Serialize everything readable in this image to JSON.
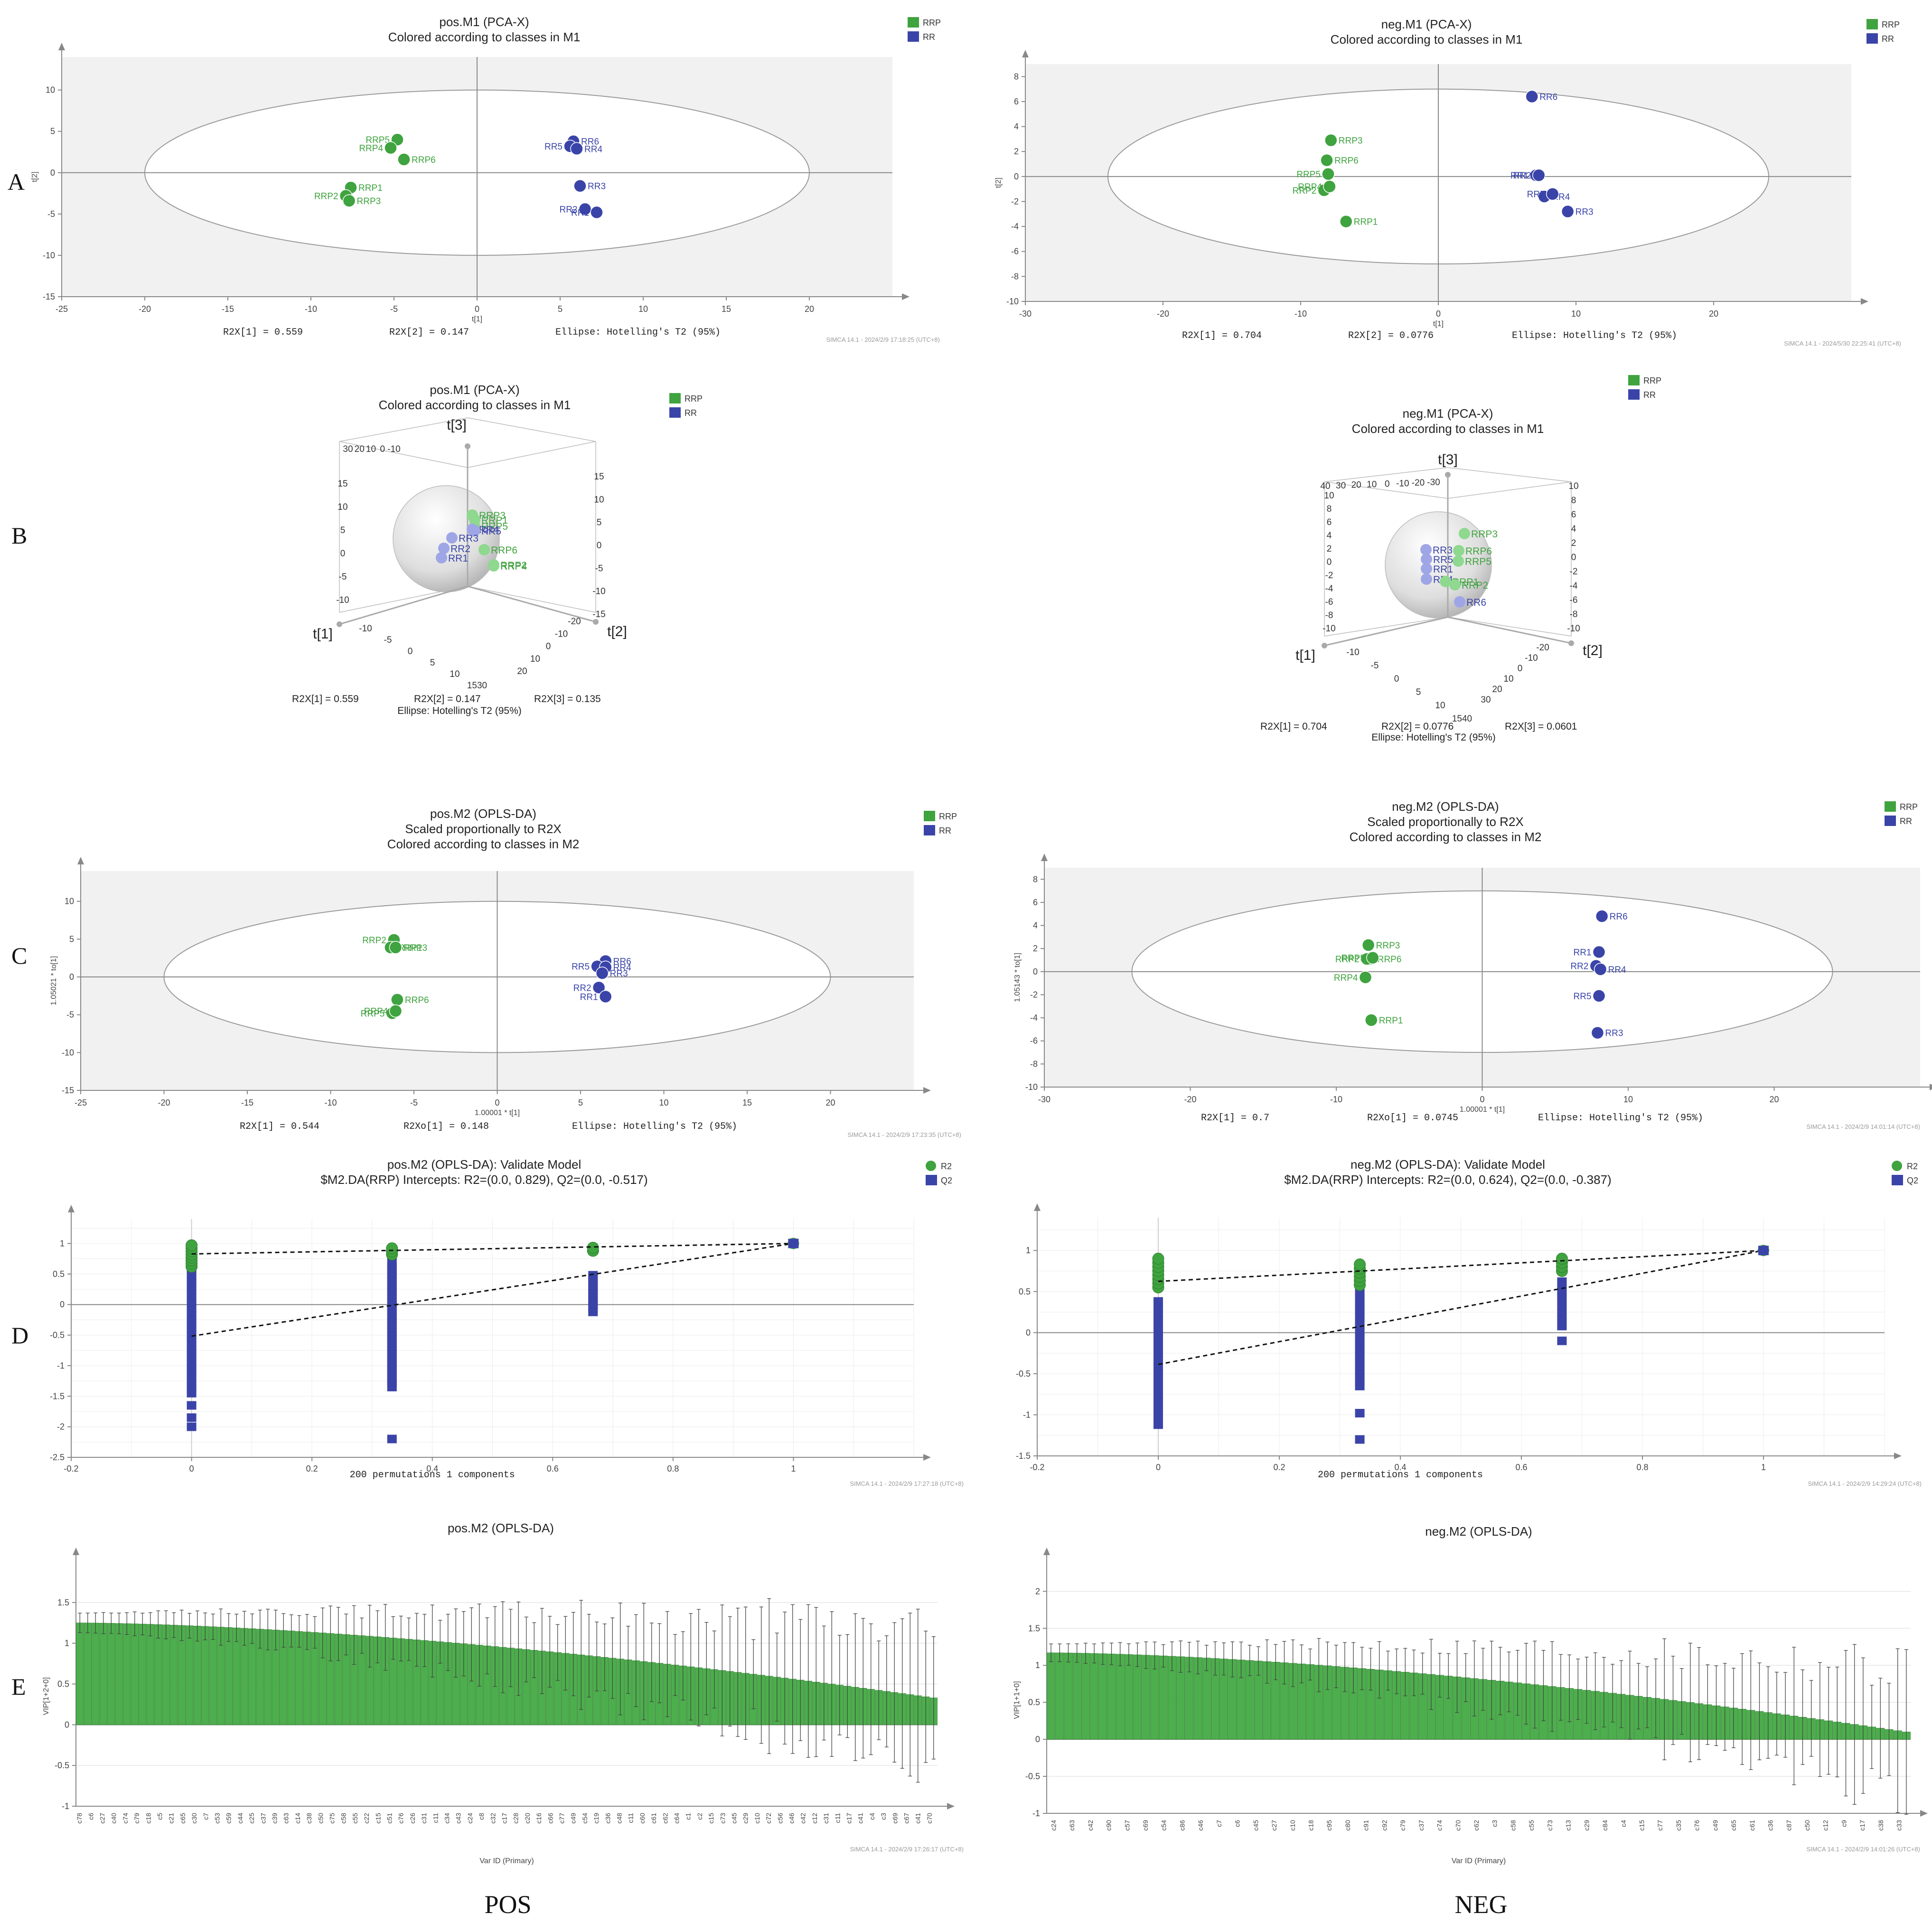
{
  "colors": {
    "rrp": "#3fa33f",
    "rr": "#3a44a8",
    "rrp_light": "#8fd88f",
    "rr_light": "#9fa6e6",
    "dashed": "#111111"
  },
  "panel_letters": [
    "A",
    "B",
    "C",
    "D",
    "E"
  ],
  "column_labels": {
    "pos": "POS",
    "neg": "NEG"
  },
  "chart_data": [
    {
      "id": "A-pos",
      "type": "scatter",
      "title": "pos.M1 (PCA-X)",
      "subtitle": "Colored according to classes in M1",
      "xlabel": "t[1]",
      "ylabel": "t[2]",
      "xlim": [
        -25,
        25
      ],
      "ylim": [
        -15,
        14
      ],
      "xticks": [
        -25,
        -20,
        -15,
        -10,
        -5,
        0,
        5,
        10,
        15,
        20
      ],
      "yticks": [
        -15,
        -10,
        -5,
        0,
        5,
        10
      ],
      "legend": [
        "RRP",
        "RR"
      ],
      "ellipse": {
        "rx": 20,
        "ry": 10
      },
      "points": [
        {
          "label": "RRP5",
          "x": -4.8,
          "y": 4.0,
          "cls": "RRP"
        },
        {
          "label": "RRP4",
          "x": -5.2,
          "y": 3.0,
          "cls": "RRP"
        },
        {
          "label": "RRP6",
          "x": -4.4,
          "y": 1.6,
          "cls": "RRP"
        },
        {
          "label": "RRP1",
          "x": -7.6,
          "y": -1.8,
          "cls": "RRP"
        },
        {
          "label": "RRP2",
          "x": -7.9,
          "y": -2.8,
          "cls": "RRP"
        },
        {
          "label": "RRP3",
          "x": -7.7,
          "y": -3.4,
          "cls": "RRP"
        },
        {
          "label": "RR6",
          "x": 5.8,
          "y": 3.8,
          "cls": "RR"
        },
        {
          "label": "RR5",
          "x": 5.6,
          "y": 3.2,
          "cls": "RR"
        },
        {
          "label": "RR4",
          "x": 6.0,
          "y": 2.9,
          "cls": "RR"
        },
        {
          "label": "RR3",
          "x": 6.2,
          "y": -1.6,
          "cls": "RR"
        },
        {
          "label": "RR2",
          "x": 6.5,
          "y": -4.4,
          "cls": "RR"
        },
        {
          "label": "RR1",
          "x": 7.2,
          "y": -4.8,
          "cls": "RR"
        }
      ],
      "footer": [
        "R2X[1] = 0.559",
        "R2X[2] = 0.147",
        "Ellipse: Hotelling's T2 (95%)"
      ],
      "stamp": "SIMCA 14.1 - 2024/2/9 17:18:25 (UTC+8)"
    },
    {
      "id": "A-neg",
      "type": "scatter",
      "title": "neg.M1 (PCA-X)",
      "subtitle": "Colored according to classes in M1",
      "xlabel": "t[1]",
      "ylabel": "t[2]",
      "xlim": [
        -30,
        30
      ],
      "ylim": [
        -10,
        9
      ],
      "xticks": [
        -30,
        -20,
        -10,
        0,
        10,
        20
      ],
      "yticks": [
        -10,
        -8,
        -6,
        -4,
        -2,
        0,
        2,
        4,
        6,
        8
      ],
      "legend": [
        "RRP",
        "RR"
      ],
      "ellipse": {
        "rx": 24,
        "ry": 7
      },
      "points": [
        {
          "label": "RR6",
          "x": 6.8,
          "y": 6.4,
          "cls": "RR"
        },
        {
          "label": "RRP3",
          "x": -7.8,
          "y": 2.9,
          "cls": "RRP"
        },
        {
          "label": "RRP6",
          "x": -8.1,
          "y": 1.3,
          "cls": "RRP"
        },
        {
          "label": "RRP5",
          "x": -8.0,
          "y": 0.2,
          "cls": "RRP"
        },
        {
          "label": "RRP2",
          "x": -8.3,
          "y": -1.1,
          "cls": "RRP"
        },
        {
          "label": "RRP4",
          "x": -7.9,
          "y": -0.8,
          "cls": "RRP"
        },
        {
          "label": "RRP1",
          "x": -6.7,
          "y": -3.6,
          "cls": "RRP"
        },
        {
          "label": "RR1",
          "x": 7.1,
          "y": 0.1,
          "cls": "RR"
        },
        {
          "label": "RR2",
          "x": 7.3,
          "y": 0.1,
          "cls": "RR"
        },
        {
          "label": "RR4",
          "x": 7.7,
          "y": -1.6,
          "cls": "RR"
        },
        {
          "label": "RR5",
          "x": 8.3,
          "y": -1.4,
          "cls": "RR"
        },
        {
          "label": "RR3",
          "x": 9.4,
          "y": -2.8,
          "cls": "RR"
        }
      ],
      "footer": [
        "R2X[1] = 0.704",
        "R2X[2] = 0.0776",
        "Ellipse: Hotelling's T2 (95%)"
      ],
      "stamp": "SIMCA 14.1 - 2024/5/30 22:25:41 (UTC+8)"
    },
    {
      "id": "B-pos",
      "type": "scatter",
      "title": "pos.M1 (PCA-X)",
      "subtitle": "Colored according to classes in M1",
      "axis_names": [
        "t[1]",
        "t[2]",
        "t[3]"
      ],
      "legend": [
        "RRP",
        "RR"
      ],
      "tick_groups": {
        "top_left": [
          "30",
          "20",
          "10",
          "0",
          "-10"
        ],
        "left_v": [
          "15",
          "10",
          "5",
          "0",
          "-5",
          "-10"
        ],
        "right_v": [
          "15",
          "10",
          "5",
          "0",
          "-5",
          "-10",
          "-15"
        ],
        "front_left": [
          "-10",
          "-5",
          "0",
          "5",
          "10",
          "1530"
        ],
        "front_right": [
          "-20",
          "-10",
          "0",
          "10",
          "20"
        ]
      },
      "point_labels": [
        "RRP3",
        "RRP1",
        "RRP5",
        "RR4",
        "RR5",
        "RR3",
        "RR2",
        "RR1",
        "RRP6",
        "RRP2",
        "RRP4"
      ],
      "footer": [
        "R2X[1] = 0.559",
        "R2X[2] = 0.147",
        "R2X[3] = 0.135",
        "Ellipse: Hotelling's T2 (95%)"
      ]
    },
    {
      "id": "B-neg",
      "type": "scatter",
      "title": "neg.M1 (PCA-X)",
      "subtitle": "Colored according to classes in M1",
      "axis_names": [
        "t[1]",
        "t[2]",
        "t[3]"
      ],
      "legend": [
        "RRP",
        "RR"
      ],
      "tick_groups": {
        "top_left": [
          "40",
          "30",
          "20",
          "10",
          "0",
          "-10",
          "-20",
          "-30"
        ],
        "left_v": [
          "10",
          "8",
          "6",
          "4",
          "2",
          "0",
          "-2",
          "-4",
          "-6",
          "-8",
          "-10"
        ],
        "right_v": [
          "10",
          "8",
          "6",
          "4",
          "2",
          "0",
          "-2",
          "-4",
          "-6",
          "-8",
          "-10"
        ],
        "front_left": [
          "-10",
          "-5",
          "0",
          "5",
          "10",
          "1540"
        ],
        "front_right": [
          "-20",
          "-10",
          "0",
          "10",
          "20",
          "30"
        ]
      },
      "point_labels": [
        "RRP3",
        "RR3",
        "RRP6",
        "RR5",
        "RRP5",
        "RR1",
        "RR4",
        "RRP1",
        "RRP2",
        "RR6"
      ],
      "footer": [
        "R2X[1] = 0.704",
        "R2X[2] = 0.0776",
        "R2X[3] = 0.0601",
        "Ellipse: Hotelling's T2 (95%)"
      ]
    },
    {
      "id": "C-pos",
      "type": "scatter",
      "title": "pos.M2 (OPLS-DA)",
      "subtitle": "Scaled proportionally to R2X",
      "subtitle2": "Colored according to classes in M2",
      "xlabel": "1.00001 * t[1]",
      "ylabel": "1.05021 * to[1]",
      "xlim": [
        -25,
        25
      ],
      "ylim": [
        -15,
        14
      ],
      "xticks": [
        -25,
        -20,
        -15,
        -10,
        -5,
        0,
        5,
        10,
        15,
        20
      ],
      "yticks": [
        -15,
        -10,
        -5,
        0,
        5,
        10
      ],
      "legend": [
        "RRP",
        "RR"
      ],
      "ellipse": {
        "rx": 20,
        "ry": 10
      },
      "points": [
        {
          "label": "RRP2",
          "x": -6.2,
          "y": 4.9,
          "cls": "RRP"
        },
        {
          "label": "RRP1",
          "x": -6.4,
          "y": 3.9,
          "cls": "RRP"
        },
        {
          "label": "RRP3",
          "x": -6.1,
          "y": 3.9,
          "cls": "RRP"
        },
        {
          "label": "RRP6",
          "x": -6.0,
          "y": -3.0,
          "cls": "RRP"
        },
        {
          "label": "RRP5",
          "x": -6.3,
          "y": -4.8,
          "cls": "RRP"
        },
        {
          "label": "RRP4",
          "x": -6.1,
          "y": -4.5,
          "cls": "RRP"
        },
        {
          "label": "RR6",
          "x": 6.5,
          "y": 2.1,
          "cls": "RR"
        },
        {
          "label": "RR5",
          "x": 6.0,
          "y": 1.4,
          "cls": "RR"
        },
        {
          "label": "RR4",
          "x": 6.5,
          "y": 1.3,
          "cls": "RR"
        },
        {
          "label": "RR3",
          "x": 6.3,
          "y": 0.5,
          "cls": "RR"
        },
        {
          "label": "RR2",
          "x": 6.1,
          "y": -1.4,
          "cls": "RR"
        },
        {
          "label": "RR1",
          "x": 6.5,
          "y": -2.6,
          "cls": "RR"
        }
      ],
      "footer": [
        "R2X[1] = 0.544",
        "R2Xo[1] = 0.148",
        "Ellipse: Hotelling's T2 (95%)"
      ],
      "stamp": "SIMCA 14.1 - 2024/2/9 17:23:35 (UTC+8)"
    },
    {
      "id": "C-neg",
      "type": "scatter",
      "title": "neg.M2 (OPLS-DA)",
      "subtitle": "Scaled proportionally to R2X",
      "subtitle2": "Colored according to classes in M2",
      "xlabel": "1.00001 * t[1]",
      "ylabel": "1.05143 * to[1]",
      "xlim": [
        -30,
        30
      ],
      "ylim": [
        -10,
        9
      ],
      "xticks": [
        -30,
        -20,
        -10,
        0,
        10,
        20
      ],
      "yticks": [
        -10,
        -8,
        -6,
        -4,
        -2,
        0,
        2,
        4,
        6,
        8
      ],
      "legend": [
        "RRP",
        "RR"
      ],
      "ellipse": {
        "rx": 24,
        "ry": 7
      },
      "points": [
        {
          "label": "RR6",
          "x": 8.2,
          "y": 4.8,
          "cls": "RR"
        },
        {
          "label": "RRP3",
          "x": -7.8,
          "y": 2.3,
          "cls": "RRP"
        },
        {
          "label": "RRP6",
          "x": -7.7,
          "y": 1.1,
          "cls": "RRP"
        },
        {
          "label": "RRP2",
          "x": -7.9,
          "y": 1.1,
          "cls": "RRP"
        },
        {
          "label": "RRP5",
          "x": -7.5,
          "y": 1.2,
          "cls": "RRP"
        },
        {
          "label": "RRP4",
          "x": -8.0,
          "y": -0.5,
          "cls": "RRP"
        },
        {
          "label": "RRP1",
          "x": -7.6,
          "y": -4.2,
          "cls": "RRP"
        },
        {
          "label": "RR1",
          "x": 8.0,
          "y": 1.7,
          "cls": "RR"
        },
        {
          "label": "RR2",
          "x": 7.8,
          "y": 0.5,
          "cls": "RR"
        },
        {
          "label": "RR4",
          "x": 8.1,
          "y": 0.2,
          "cls": "RR"
        },
        {
          "label": "RR5",
          "x": 8.0,
          "y": -2.1,
          "cls": "RR"
        },
        {
          "label": "RR3",
          "x": 7.9,
          "y": -5.3,
          "cls": "RR"
        }
      ],
      "footer": [
        "R2X[1] = 0.7",
        "R2Xo[1] = 0.0745",
        "Ellipse: Hotelling's T2 (95%)"
      ],
      "stamp": "SIMCA 14.1 - 2024/2/9 14:01:14 (UTC+8)"
    },
    {
      "id": "D-pos",
      "type": "scatter",
      "title": "pos.M2 (OPLS-DA): Validate Model",
      "subtitle": "$M2.DA(RRP) Intercepts: R2=(0.0, 0.829), Q2=(0.0, -0.517)",
      "xlabel": "200 permutations 1 components",
      "xlim": [
        -0.2,
        1.2
      ],
      "ylim": [
        -2.5,
        1.4
      ],
      "xticks": [
        -0.2,
        0,
        0.2,
        0.4,
        0.6,
        0.8,
        1
      ],
      "yticks": [
        -2.5,
        -2,
        -1.5,
        -1,
        -0.5,
        0,
        0.5,
        1
      ],
      "legend": [
        "R2",
        "Q2"
      ],
      "r2_line": [
        [
          0,
          0.829
        ],
        [
          1,
          1
        ]
      ],
      "q2_line": [
        [
          0,
          -0.517
        ],
        [
          1,
          1
        ]
      ],
      "r2_columns": [
        {
          "x": 0,
          "min": 0.62,
          "max": 0.98
        },
        {
          "x": 0.333,
          "min": 0.82,
          "max": 0.96
        },
        {
          "x": 0.667,
          "min": 0.88,
          "max": 0.94
        }
      ],
      "q2_columns": [
        {
          "x": 0,
          "min": -1.45,
          "max": 0.82,
          "outliers": [
            -1.65,
            -1.85,
            -2.0
          ]
        },
        {
          "x": 0.333,
          "min": -1.35,
          "max": 0.72,
          "outliers": [
            -2.2
          ]
        },
        {
          "x": 0.667,
          "min": -0.12,
          "max": 0.48,
          "outliers": []
        }
      ],
      "final_point": {
        "x": 1,
        "r2": 1,
        "q2": 1
      },
      "stamp": "SIMCA 14.1 - 2024/2/9 17:27:18 (UTC+8)"
    },
    {
      "id": "D-neg",
      "type": "scatter",
      "title": "neg.M2 (OPLS-DA): Validate Model",
      "subtitle": "$M2.DA(RRP) Intercepts: R2=(0.0, 0.624), Q2=(0.0, -0.387)",
      "xlabel": "200 permutations 1 components",
      "xlim": [
        -0.2,
        1.2
      ],
      "ylim": [
        -1.5,
        1.4
      ],
      "xticks": [
        -0.2,
        0,
        0.2,
        0.4,
        0.6,
        0.8,
        1
      ],
      "yticks": [
        -1.5,
        -1,
        -0.5,
        0,
        0.5,
        1
      ],
      "legend": [
        "R2",
        "Q2"
      ],
      "r2_line": [
        [
          0,
          0.624
        ],
        [
          1,
          1
        ]
      ],
      "q2_line": [
        [
          0,
          -0.387
        ],
        [
          1,
          1
        ]
      ],
      "r2_columns": [
        {
          "x": 0,
          "min": 0.55,
          "max": 0.9
        },
        {
          "x": 0.333,
          "min": 0.58,
          "max": 0.86
        },
        {
          "x": 0.667,
          "min": 0.75,
          "max": 0.92
        }
      ],
      "q2_columns": [
        {
          "x": 0,
          "min": -1.12,
          "max": 0.38,
          "outliers": []
        },
        {
          "x": 0.333,
          "min": -0.65,
          "max": 0.5,
          "outliers": [
            -0.98,
            -1.3
          ]
        },
        {
          "x": 0.667,
          "min": 0.08,
          "max": 0.62,
          "outliers": [
            -0.1
          ]
        }
      ],
      "final_point": {
        "x": 1,
        "r2": 1,
        "q2": 1
      },
      "stamp": "SIMCA 14.1 - 2024/2/9 14:29:24 (UTC+8)"
    },
    {
      "id": "E-pos",
      "type": "bar",
      "title": "pos.M2 (OPLS-DA)",
      "xlabel": "Var ID (Primary)",
      "ylabel": "VIP[1+2+0]",
      "ylim": [
        -1.0,
        2.0
      ],
      "yticks": [
        -1,
        -0.5,
        0,
        0.5,
        1,
        1.5
      ],
      "n_bars": 110,
      "start": 1.25,
      "end": 0.33,
      "err_low": 0.12,
      "err_high": 1.0,
      "categories": [
        "c78",
        "c6",
        "c27",
        "c40",
        "c74",
        "c79",
        "c18",
        "c5",
        "c21",
        "c65",
        "c30",
        "c7",
        "c53",
        "c59",
        "c44",
        "c25",
        "c37",
        "c39",
        "c63",
        "c14",
        "c38",
        "c50",
        "c75",
        "c58",
        "c55",
        "c22",
        "c15",
        "c51",
        "c76",
        "c26",
        "c31",
        "c11",
        "c34",
        "c43",
        "c24",
        "c8",
        "c32",
        "c17",
        "c28",
        "c20",
        "c16",
        "c66",
        "c77",
        "c49",
        "c54",
        "c19",
        "c36",
        "c48",
        "c11",
        "c60",
        "c61",
        "c62",
        "c64",
        "c1",
        "c2",
        "c15",
        "c73",
        "c45",
        "c29",
        "c10",
        "c72",
        "c56",
        "c46",
        "c42",
        "c12",
        "c31",
        "c11",
        "c17",
        "c41",
        "c4",
        "c3",
        "c69",
        "c67",
        "c41",
        "c70"
      ],
      "stamp": "SIMCA 14.1 - 2024/2/9 17:26:17 (UTC+8)"
    },
    {
      "id": "E-neg",
      "type": "bar",
      "title": "neg.M2 (OPLS-DA)",
      "xlabel": "Var ID (Primary)",
      "ylabel": "VIP[1+1+0]",
      "ylim": [
        -1.0,
        2.4
      ],
      "yticks": [
        -1,
        -0.5,
        0,
        0.5,
        1,
        1.5,
        2
      ],
      "n_bars": 100,
      "start": 1.17,
      "end": 0.1,
      "err_low": 0.12,
      "err_high": 1.0,
      "categories": [
        "c24",
        "c63",
        "c42",
        "c90",
        "c57",
        "c69",
        "c54",
        "c86",
        "c46",
        "c7",
        "c6",
        "c45",
        "c27",
        "c10",
        "c18",
        "c95",
        "c80",
        "c91",
        "c92",
        "c79",
        "c37",
        "c74",
        "c70",
        "c62",
        "c3",
        "c58",
        "c55",
        "c73",
        "c13",
        "c29",
        "c84",
        "c4",
        "c15",
        "c77",
        "c35",
        "c76",
        "c49",
        "c65",
        "c61",
        "c36",
        "c87",
        "c50",
        "c12",
        "c9",
        "c17",
        "c38",
        "c33"
      ],
      "stamp": "SIMCA 14.1 - 2024/2/9 14:01:26 (UTC+8)"
    }
  ]
}
